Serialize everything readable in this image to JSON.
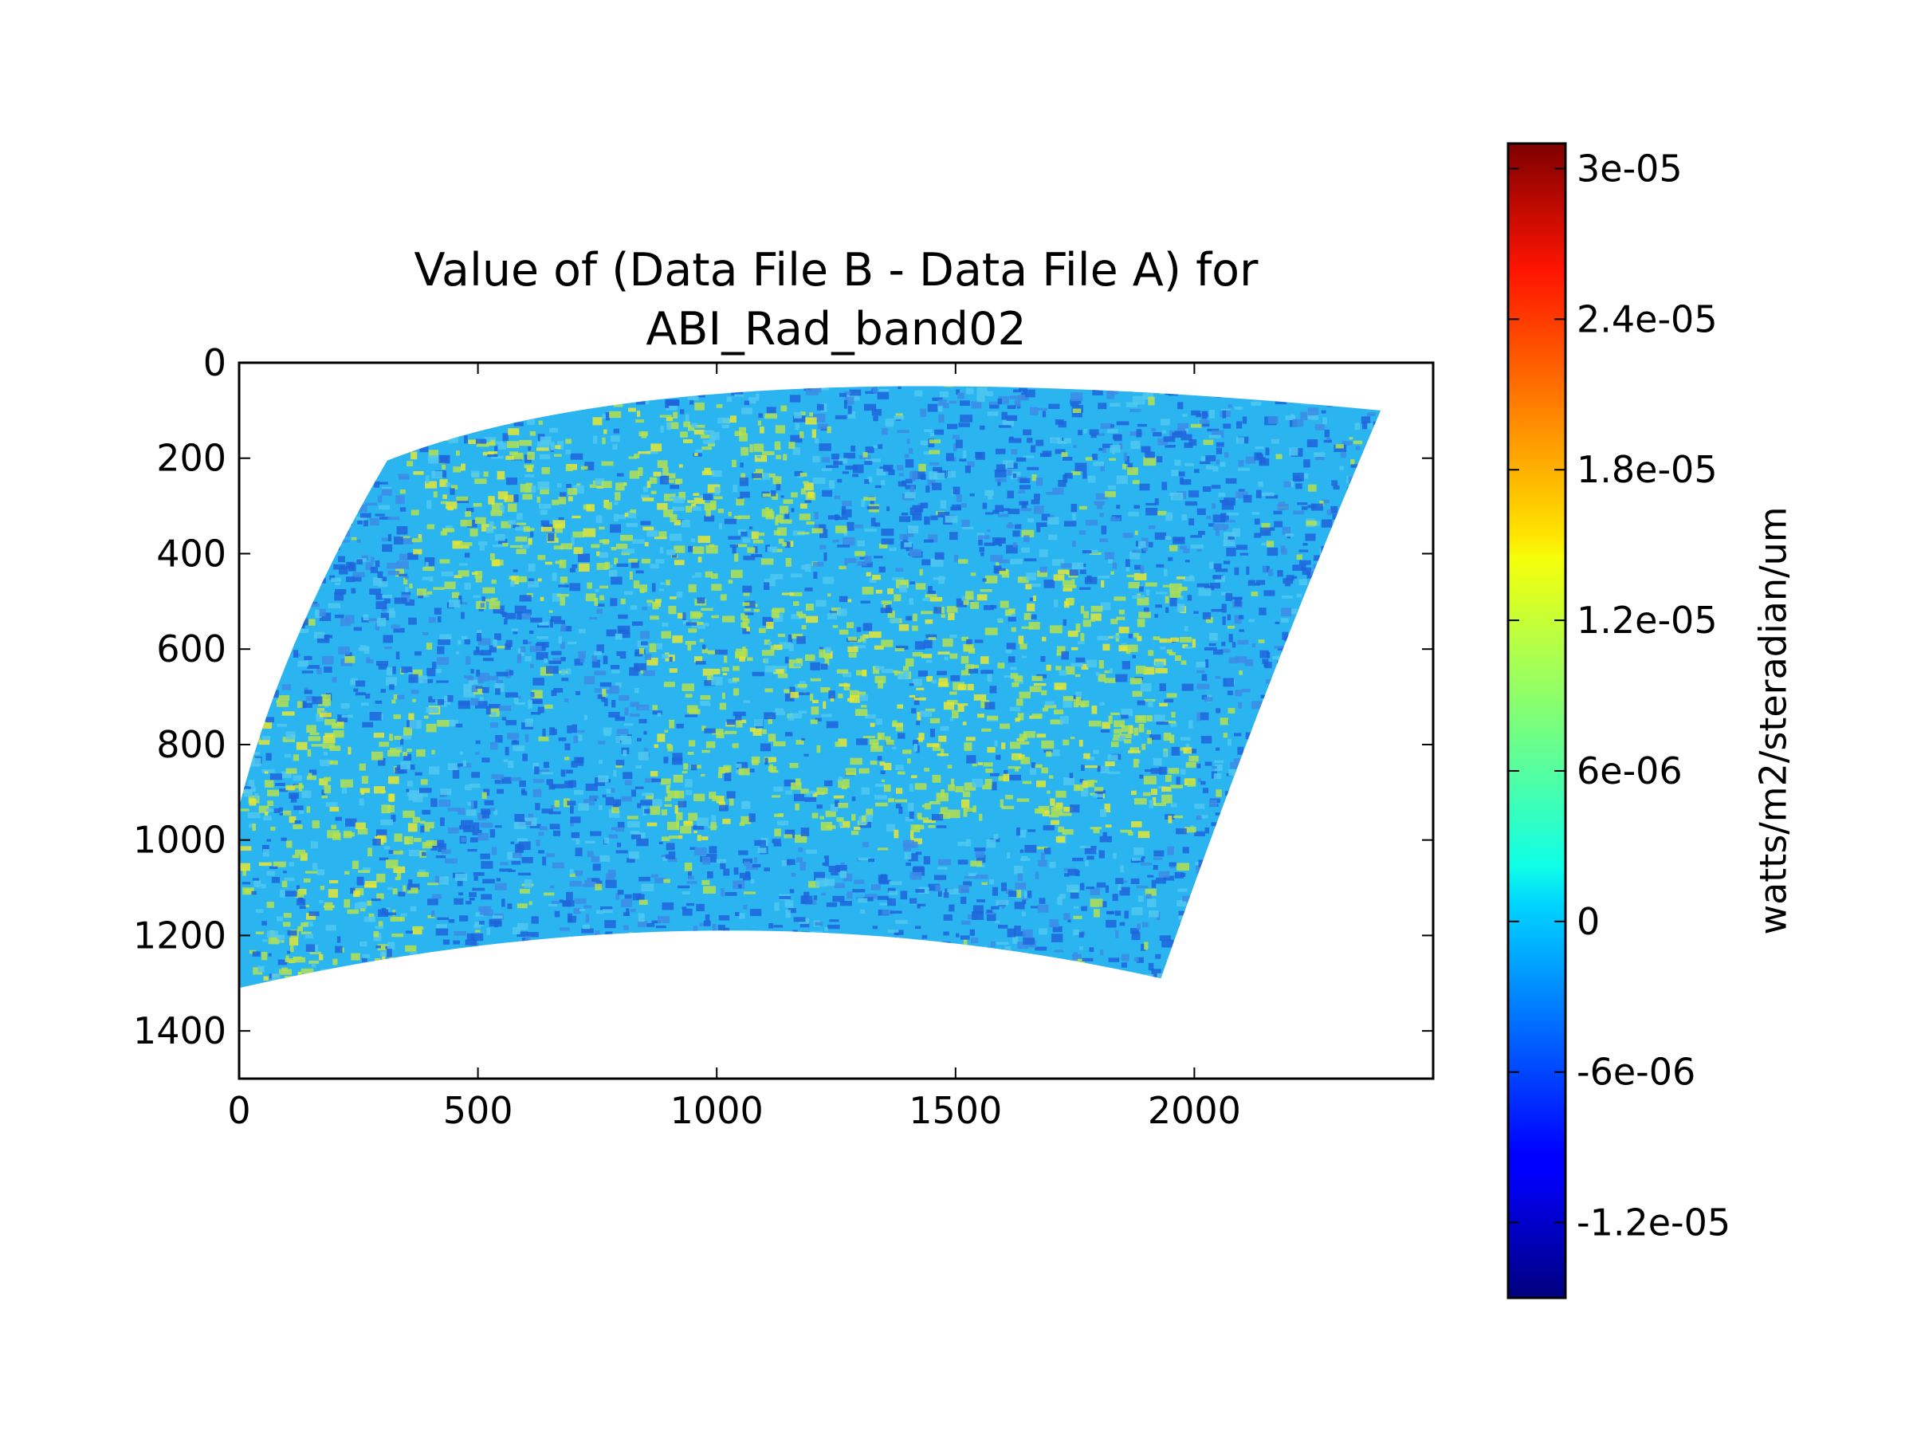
{
  "chart_data": {
    "type": "heatmap",
    "title": "Value of (Data File B - Data File A) for\nABI_Rad_band02",
    "title_lines": [
      "Value of (Data File B - Data File A) for",
      "ABI_Rad_band02"
    ],
    "xlabel": "",
    "ylabel": "",
    "xlim": [
      0,
      2500
    ],
    "ylim": [
      1500,
      0
    ],
    "x_ticks": [
      0,
      500,
      1000,
      1500,
      2000
    ],
    "x_tick_labels": [
      "0",
      "500",
      "1000",
      "1500",
      "2000"
    ],
    "y_ticks": [
      0,
      200,
      400,
      600,
      800,
      1000,
      1200,
      1400
    ],
    "y_tick_labels": [
      "0",
      "200",
      "400",
      "600",
      "800",
      "1000",
      "1200",
      "1400"
    ],
    "colorbar": {
      "label": "watts/m2/steradian/um",
      "colormap": "jet",
      "range": [
        -1.5e-05,
        3.1e-05
      ],
      "ticks": [
        -1.2e-05,
        -6e-06,
        0,
        6e-06,
        1.2e-05,
        1.8e-05,
        2.4e-05,
        3e-05
      ],
      "tick_labels": [
        "-1.2e-05",
        "-6e-06",
        "0",
        "6e-06",
        "1.2e-05",
        "1.8e-05",
        "2.4e-05",
        "3e-05"
      ]
    },
    "data_footprint_corners": [
      [
        0,
        930
      ],
      [
        310,
        205
      ],
      [
        2390,
        100
      ],
      [
        1930,
        1290
      ],
      [
        0,
        1310
      ]
    ],
    "grid": false,
    "legend": "none"
  },
  "colors": {
    "background": "#ffffff",
    "dominant_value_color": "#2ab4f0",
    "secondary_value_color": "#1e64dc",
    "highlight_value_color": "#b4e050"
  }
}
